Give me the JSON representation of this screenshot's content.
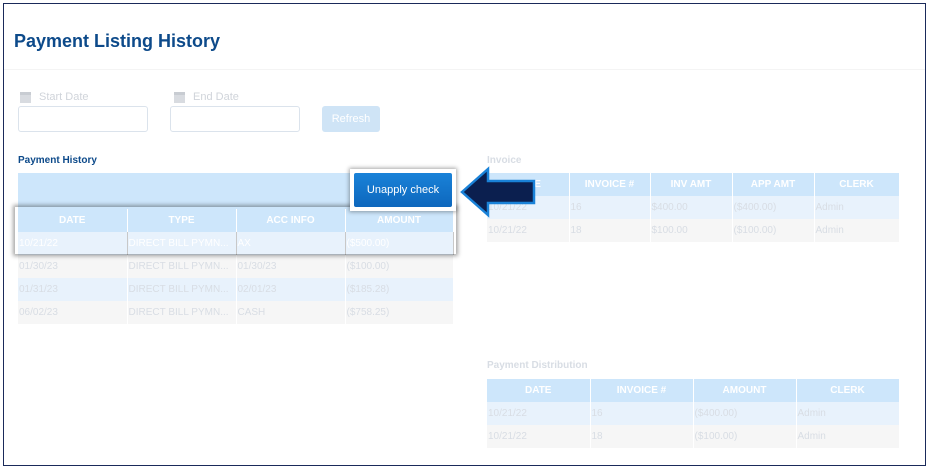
{
  "page_title": "Payment Listing History",
  "filters": {
    "start_date_label": "Start Date",
    "start_date_value": "",
    "end_date_label": "End Date",
    "end_date_value": "",
    "refresh_label": "Refresh"
  },
  "payment_history": {
    "title": "Payment History",
    "unapply_label": "Unapply check",
    "columns": [
      "DATE",
      "TYPE",
      "ACC INFO",
      "AMOUNT"
    ],
    "rows": [
      [
        "10/21/22",
        "DIRECT BILL PYMN...",
        "AX",
        "($500.00)"
      ],
      [
        "01/30/23",
        "DIRECT BILL PYMN...",
        "01/30/23",
        "($100.00)"
      ],
      [
        "01/31/23",
        "DIRECT BILL PYMN...",
        "02/01/23",
        "($185.28)"
      ],
      [
        "06/02/23",
        "DIRECT BILL PYMN...",
        "CASH",
        "($758.25)"
      ]
    ]
  },
  "invoice": {
    "title": "Invoice",
    "columns": [
      "DATE",
      "INVOICE #",
      "INV AMT",
      "APP AMT",
      "CLERK"
    ],
    "rows": [
      [
        "10/21/22",
        "16",
        "$400.00",
        "($400.00)",
        "Admin"
      ],
      [
        "10/21/22",
        "18",
        "$100.00",
        "($100.00)",
        "Admin"
      ]
    ]
  },
  "payment_distribution": {
    "title": "Payment Distribution",
    "columns": [
      "DATE",
      "INVOICE #",
      "AMOUNT",
      "CLERK"
    ],
    "rows": [
      [
        "10/21/22",
        "16",
        "($400.00)",
        "Admin"
      ],
      [
        "10/21/22",
        "18",
        "($100.00)",
        "Admin"
      ]
    ]
  },
  "colors": {
    "title": "#0d4a8a",
    "header": "#6cb6f0",
    "button": "#1a82d8",
    "arrow": "#0b1f4f"
  }
}
